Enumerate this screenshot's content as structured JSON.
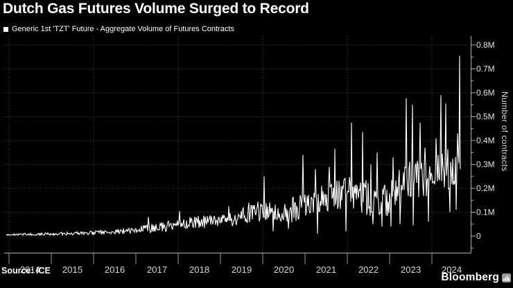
{
  "chart_data": {
    "type": "line",
    "title": "Dutch Gas Futures Volume Surged to Record",
    "series_name": "Generic 1st 'TZT' Future - Aggregate Volume of Futures Contracts",
    "ylabel": "Number of contracts",
    "source": "Source: ICE",
    "brand": "Bloomberg",
    "brand_icon": "bloomberg-bars-icon",
    "unit": "millions of contracts",
    "xlim": [
      2013.93,
      2024.93
    ],
    "ylim": [
      0,
      0.84
    ],
    "grid": "dotted",
    "legend_position": "top-left",
    "axis_position": "right",
    "x_ticks": [
      "2014",
      "2015",
      "2016",
      "2017",
      "2018",
      "2019",
      "2020",
      "2021",
      "2022",
      "2023",
      "2024"
    ],
    "grid_years": [
      2014,
      2016,
      2018,
      2020,
      2022,
      2024
    ],
    "y_ticks": [
      {
        "v": 0.0,
        "label": "0"
      },
      {
        "v": 0.1,
        "label": "0.1M"
      },
      {
        "v": 0.2,
        "label": "0.2M"
      },
      {
        "v": 0.3,
        "label": "0.3M"
      },
      {
        "v": 0.4,
        "label": "0.4M"
      },
      {
        "v": 0.5,
        "label": "0.5M"
      },
      {
        "v": 0.6,
        "label": "0.6M"
      },
      {
        "v": 0.7,
        "label": "0.7M"
      },
      {
        "v": 0.8,
        "label": "0.8M"
      }
    ],
    "envelope_low_high": [
      [
        2013.93,
        0.002,
        0.009
      ],
      [
        2014.5,
        0.003,
        0.013
      ],
      [
        2015.0,
        0.003,
        0.015
      ],
      [
        2015.5,
        0.004,
        0.018
      ],
      [
        2016.0,
        0.005,
        0.022
      ],
      [
        2016.5,
        0.007,
        0.028
      ],
      [
        2017.0,
        0.012,
        0.04
      ],
      [
        2017.5,
        0.015,
        0.055
      ],
      [
        2018.0,
        0.025,
        0.075
      ],
      [
        2018.5,
        0.03,
        0.085
      ],
      [
        2019.0,
        0.035,
        0.095
      ],
      [
        2019.5,
        0.045,
        0.115
      ],
      [
        2019.9,
        0.06,
        0.15
      ],
      [
        2020.1,
        0.05,
        0.15
      ],
      [
        2020.4,
        0.04,
        0.13
      ],
      [
        2020.75,
        0.06,
        0.17
      ],
      [
        2021.0,
        0.08,
        0.19
      ],
      [
        2021.5,
        0.1,
        0.22
      ],
      [
        2021.9,
        0.11,
        0.26
      ],
      [
        2022.1,
        0.1,
        0.28
      ],
      [
        2022.4,
        0.09,
        0.24
      ],
      [
        2022.7,
        0.07,
        0.2
      ],
      [
        2023.0,
        0.08,
        0.23
      ],
      [
        2023.3,
        0.13,
        0.3
      ],
      [
        2023.6,
        0.15,
        0.33
      ],
      [
        2024.0,
        0.17,
        0.33
      ],
      [
        2024.3,
        0.2,
        0.38
      ],
      [
        2024.55,
        0.19,
        0.36
      ],
      [
        2024.67,
        0.25,
        0.42
      ]
    ],
    "spikes": [
      [
        2017.3,
        0.08
      ],
      [
        2018.03,
        0.105
      ],
      [
        2019.2,
        0.125
      ],
      [
        2019.67,
        0.14
      ],
      [
        2020.03,
        0.25
      ],
      [
        2020.95,
        0.34
      ],
      [
        2021.25,
        0.28
      ],
      [
        2021.57,
        0.29
      ],
      [
        2021.7,
        0.365
      ],
      [
        2022.1,
        0.475
      ],
      [
        2022.36,
        0.435
      ],
      [
        2022.55,
        0.3
      ],
      [
        2022.7,
        0.35
      ],
      [
        2023.08,
        0.33
      ],
      [
        2023.39,
        0.577
      ],
      [
        2023.54,
        0.55
      ],
      [
        2023.72,
        0.475
      ],
      [
        2023.84,
        0.37
      ],
      [
        2024.1,
        0.41
      ],
      [
        2024.21,
        0.59
      ],
      [
        2024.33,
        0.555
      ],
      [
        2024.6,
        0.43
      ],
      [
        2024.655,
        0.755
      ]
    ],
    "dips": [
      [
        2020.25,
        0.02
      ],
      [
        2020.6,
        0.03
      ],
      [
        2021.3,
        0.01
      ],
      [
        2021.97,
        0.02
      ],
      [
        2022.6,
        0.05
      ],
      [
        2022.82,
        0.04
      ],
      [
        2023.03,
        0.04
      ],
      [
        2023.25,
        0.05
      ],
      [
        2023.55,
        0.045
      ],
      [
        2023.92,
        0.06
      ],
      [
        2024.42,
        0.1
      ],
      [
        2024.57,
        0.11
      ],
      [
        2024.67,
        0.28
      ]
    ],
    "record": {
      "t": 2024.655,
      "value_millions": 0.755
    },
    "colors": {
      "background": "#000000",
      "line": "#ffffff",
      "grid": "#3f3f3f",
      "axis": "#b0b0b0",
      "tick_label": "#e0e0e0",
      "year_label": "#d6d6d6",
      "title": "#ffffff",
      "brand_icon_bg": "#9a9a9a"
    }
  }
}
